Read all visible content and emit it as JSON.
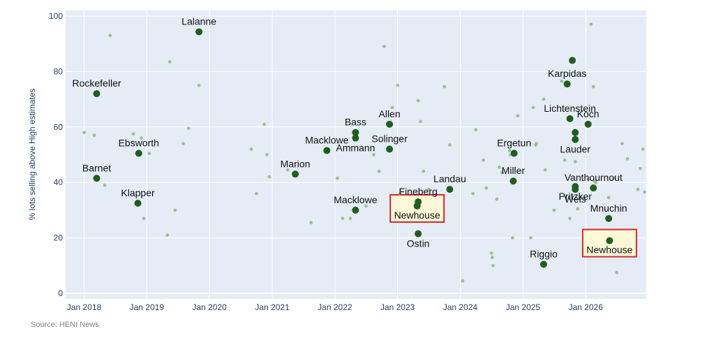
{
  "chart_data": {
    "type": "scatter",
    "title": "",
    "xlabel": "",
    "ylabel": "% lots selling above High estimates",
    "source": "Source: HENI News",
    "xlim": [
      "2017-09-15",
      "2026-12-20"
    ],
    "ylim": [
      -2,
      102
    ],
    "x_ticks": [
      {
        "date": "2018-01-01",
        "label": "Jan 2018"
      },
      {
        "date": "2019-01-01",
        "label": "Jan 2019"
      },
      {
        "date": "2020-01-01",
        "label": "Jan 2020"
      },
      {
        "date": "2021-01-01",
        "label": "Jan 2021"
      },
      {
        "date": "2022-01-01",
        "label": "Jan 2022"
      },
      {
        "date": "2023-01-01",
        "label": "Jan 2023"
      },
      {
        "date": "2024-01-01",
        "label": "Jan 2024"
      },
      {
        "date": "2025-01-01",
        "label": "Jan 2025"
      },
      {
        "date": "2026-01-01",
        "label": "Jan 2026"
      }
    ],
    "y_ticks": [
      0,
      20,
      40,
      60,
      80,
      100
    ],
    "grid": true,
    "colors": {
      "plot_bg": "#e5ecf6",
      "grid": "#ffffff",
      "highlight_point": "#1f5f1c",
      "background_point": "#8fbf87",
      "highlight_box_fill": "#fbf8d8",
      "highlight_box_stroke": "#d62728"
    },
    "series": [
      {
        "kind": "background",
        "points": [
          {
            "x": "2018-01-01",
            "y": 58
          },
          {
            "x": "2018-03-01",
            "y": 57
          },
          {
            "x": "2018-05-01",
            "y": 39
          },
          {
            "x": "2018-06-01",
            "y": 93
          },
          {
            "x": "2018-10-15",
            "y": 57.5
          },
          {
            "x": "2018-12-01",
            "y": 56
          },
          {
            "x": "2018-12-15",
            "y": 27
          },
          {
            "x": "2019-01-15",
            "y": 50.5
          },
          {
            "x": "2019-05-01",
            "y": 21
          },
          {
            "x": "2019-05-15",
            "y": 83.5
          },
          {
            "x": "2019-06-15",
            "y": 30
          },
          {
            "x": "2019-08-01",
            "y": 54
          },
          {
            "x": "2019-09-01",
            "y": 59.5
          },
          {
            "x": "2019-11-01",
            "y": 75
          },
          {
            "x": "2020-09-01",
            "y": 52
          },
          {
            "x": "2020-10-01",
            "y": 36
          },
          {
            "x": "2020-11-15",
            "y": 61
          },
          {
            "x": "2020-12-01",
            "y": 50
          },
          {
            "x": "2020-12-15",
            "y": 42
          },
          {
            "x": "2021-04-01",
            "y": 44.5
          },
          {
            "x": "2021-08-15",
            "y": 25.5
          },
          {
            "x": "2022-01-15",
            "y": 41.5
          },
          {
            "x": "2022-02-15",
            "y": 27
          },
          {
            "x": "2022-04-01",
            "y": 27
          },
          {
            "x": "2022-07-01",
            "y": 31.5
          },
          {
            "x": "2022-08-15",
            "y": 50
          },
          {
            "x": "2022-09-15",
            "y": 44
          },
          {
            "x": "2022-10-15",
            "y": 89
          },
          {
            "x": "2022-11-15",
            "y": 52.5
          },
          {
            "x": "2022-12-01",
            "y": 67
          },
          {
            "x": "2023-01-01",
            "y": 75
          },
          {
            "x": "2023-01-15",
            "y": 36
          },
          {
            "x": "2023-05-01",
            "y": 69.5
          },
          {
            "x": "2023-05-15",
            "y": 62
          },
          {
            "x": "2023-06-01",
            "y": 44
          },
          {
            "x": "2023-07-01",
            "y": 37.5
          },
          {
            "x": "2023-10-01",
            "y": 74.5
          },
          {
            "x": "2023-11-01",
            "y": 53.5
          },
          {
            "x": "2024-01-15",
            "y": 4.5
          },
          {
            "x": "2024-03-15",
            "y": 36
          },
          {
            "x": "2024-04-01",
            "y": 59
          },
          {
            "x": "2024-05-15",
            "y": 48
          },
          {
            "x": "2024-06-01",
            "y": 38
          },
          {
            "x": "2024-07-01",
            "y": 14.5
          },
          {
            "x": "2024-07-05",
            "y": 13
          },
          {
            "x": "2024-07-10",
            "y": 10
          },
          {
            "x": "2024-08-01",
            "y": 34
          },
          {
            "x": "2024-08-15",
            "y": 45.5
          },
          {
            "x": "2024-09-01",
            "y": 43.5
          },
          {
            "x": "2024-10-15",
            "y": 51.5
          },
          {
            "x": "2024-10-20",
            "y": 50
          },
          {
            "x": "2024-11-01",
            "y": 20
          },
          {
            "x": "2024-12-01",
            "y": 64
          },
          {
            "x": "2025-02-15",
            "y": 20
          },
          {
            "x": "2025-03-01",
            "y": 67
          },
          {
            "x": "2025-03-15",
            "y": 53.5
          },
          {
            "x": "2025-03-20",
            "y": 54
          },
          {
            "x": "2025-05-01",
            "y": 70
          },
          {
            "x": "2025-05-10",
            "y": 44.5
          },
          {
            "x": "2025-07-01",
            "y": 30
          },
          {
            "x": "2025-08-15",
            "y": 76.5
          },
          {
            "x": "2025-09-01",
            "y": 48
          },
          {
            "x": "2025-10-01",
            "y": 27
          },
          {
            "x": "2025-11-01",
            "y": 47.5
          },
          {
            "x": "2025-11-15",
            "y": 30.5
          },
          {
            "x": "2026-01-15",
            "y": 41
          },
          {
            "x": "2026-02-01",
            "y": 97
          },
          {
            "x": "2026-02-15",
            "y": 74.5
          },
          {
            "x": "2026-02-20",
            "y": 40.5
          },
          {
            "x": "2026-03-01",
            "y": 40
          },
          {
            "x": "2026-05-15",
            "y": 34.5
          },
          {
            "x": "2026-06-15",
            "y": 41.5
          },
          {
            "x": "2026-07-01",
            "y": 7.5
          },
          {
            "x": "2026-08-01",
            "y": 54
          },
          {
            "x": "2026-09-01",
            "y": 48.5
          },
          {
            "x": "2026-11-01",
            "y": 37.5
          },
          {
            "x": "2026-11-15",
            "y": 45
          },
          {
            "x": "2026-12-01",
            "y": 52
          },
          {
            "x": "2026-12-10",
            "y": 36.5
          }
        ]
      },
      {
        "kind": "highlight",
        "points": [
          {
            "x": "2018-03-15",
            "y": 72,
            "label": "Rockefeller",
            "label_pos": "above"
          },
          {
            "x": "2018-03-15",
            "y": 41.5,
            "label": "Barnet",
            "label_pos": "above"
          },
          {
            "x": "2018-11-15",
            "y": 50.5,
            "label": "Ebsworth",
            "label_pos": "above"
          },
          {
            "x": "2018-11-10",
            "y": 32.5,
            "label": "Klapper",
            "label_pos": "above"
          },
          {
            "x": "2019-11-01",
            "y": 94.3,
            "label": "Lalanne",
            "label_pos": "above"
          },
          {
            "x": "2021-05-15",
            "y": 43,
            "label": "Marion",
            "label_pos": "above"
          },
          {
            "x": "2021-11-15",
            "y": 51.5,
            "label": "Macklowe",
            "label_pos": "above"
          },
          {
            "x": "2022-05-01",
            "y": 58,
            "label": "Bass",
            "label_pos": "above"
          },
          {
            "x": "2022-05-01",
            "y": 56,
            "label": "Ammann",
            "label_pos": "below"
          },
          {
            "x": "2022-05-01",
            "y": 30,
            "label": "Macklowe",
            "label_pos": "above"
          },
          {
            "x": "2022-11-15",
            "y": 61,
            "label": "Allen",
            "label_pos": "above"
          },
          {
            "x": "2022-11-15",
            "y": 52,
            "label": "Solinger",
            "label_pos": "above"
          },
          {
            "x": "2023-05-01",
            "y": 33,
            "label": "Fineberg",
            "label_pos": "above"
          },
          {
            "x": "2023-04-25",
            "y": 31.5,
            "label": "Newhouse",
            "label_pos": "boxed-below"
          },
          {
            "x": "2023-05-01",
            "y": 21.5,
            "label": "Ostin",
            "label_pos": "below"
          },
          {
            "x": "2023-11-01",
            "y": 37.5,
            "label": "Landau",
            "label_pos": "above"
          },
          {
            "x": "2024-11-10",
            "y": 50.5,
            "label": "Ergetun",
            "label_pos": "above"
          },
          {
            "x": "2024-11-05",
            "y": 40.5,
            "label": "Miller",
            "label_pos": "above"
          },
          {
            "x": "2025-05-01",
            "y": 10.5,
            "label": "Riggio",
            "label_pos": "above"
          },
          {
            "x": "2025-09-15",
            "y": 75.5,
            "label": "Karpidas",
            "label_pos": "above"
          },
          {
            "x": "2025-10-15",
            "y": 84,
            "label": "",
            "label_pos": "none"
          },
          {
            "x": "2025-10-01",
            "y": 63,
            "label": "Lichtenstein",
            "label_pos": "above"
          },
          {
            "x": "2025-11-01",
            "y": 58,
            "label": "",
            "label_pos": "none"
          },
          {
            "x": "2026-01-15",
            "y": 61,
            "label": "Koch",
            "label_pos": "above"
          },
          {
            "x": "2025-11-01",
            "y": 55.5,
            "label": "Lauder",
            "label_pos": "below"
          },
          {
            "x": "2025-11-01",
            "y": 38.5,
            "label": "Pritzker",
            "label_pos": "below"
          },
          {
            "x": "2025-11-01",
            "y": 37.5,
            "label": "Weis",
            "label_pos": "below"
          },
          {
            "x": "2026-02-15",
            "y": 38,
            "label": "Vanthournout",
            "label_pos": "above"
          },
          {
            "x": "2026-05-15",
            "y": 27,
            "label": "Mnuchin",
            "label_pos": "above"
          },
          {
            "x": "2026-05-20",
            "y": 19,
            "label": "Newhouse",
            "label_pos": "boxed-below"
          }
        ]
      }
    ]
  }
}
